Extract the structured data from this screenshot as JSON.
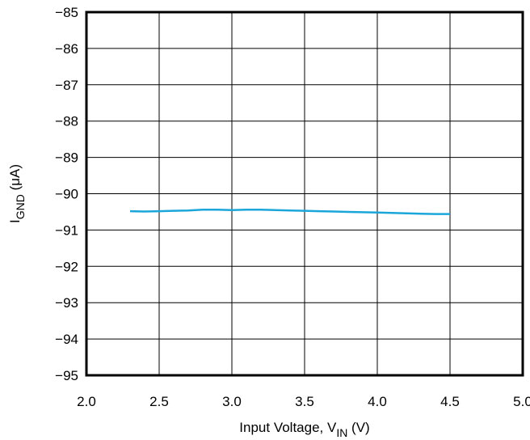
{
  "chart_data": {
    "type": "line",
    "xlabel": "Input Voltage, V",
    "xlabel_sub": "IN",
    "xlabel_unit": " (V)",
    "ylabel": "I",
    "ylabel_sub": "GND",
    "ylabel_unit": " (μA)",
    "xlim": [
      2.0,
      5.0
    ],
    "ylim": [
      -95,
      -85
    ],
    "xticks": [
      "2.0",
      "2.5",
      "3.0",
      "3.5",
      "4.0",
      "4.5",
      "5.0"
    ],
    "yticks": [
      "−85",
      "−86",
      "−87",
      "−88",
      "−89",
      "−90",
      "−91",
      "−92",
      "−93",
      "−94",
      "−95"
    ],
    "grid": true,
    "series": [
      {
        "color": "#1ba6d9",
        "x": [
          2.3,
          2.4,
          2.5,
          2.6,
          2.7,
          2.8,
          2.9,
          3.0,
          3.1,
          3.2,
          3.3,
          3.4,
          3.5,
          3.6,
          3.7,
          3.8,
          3.9,
          4.0,
          4.1,
          4.2,
          4.3,
          4.4,
          4.5
        ],
        "y": [
          -90.48,
          -90.49,
          -90.48,
          -90.47,
          -90.46,
          -90.44,
          -90.44,
          -90.45,
          -90.44,
          -90.44,
          -90.45,
          -90.46,
          -90.47,
          -90.48,
          -90.49,
          -90.5,
          -90.51,
          -90.52,
          -90.53,
          -90.54,
          -90.55,
          -90.56,
          -90.56
        ]
      }
    ]
  }
}
